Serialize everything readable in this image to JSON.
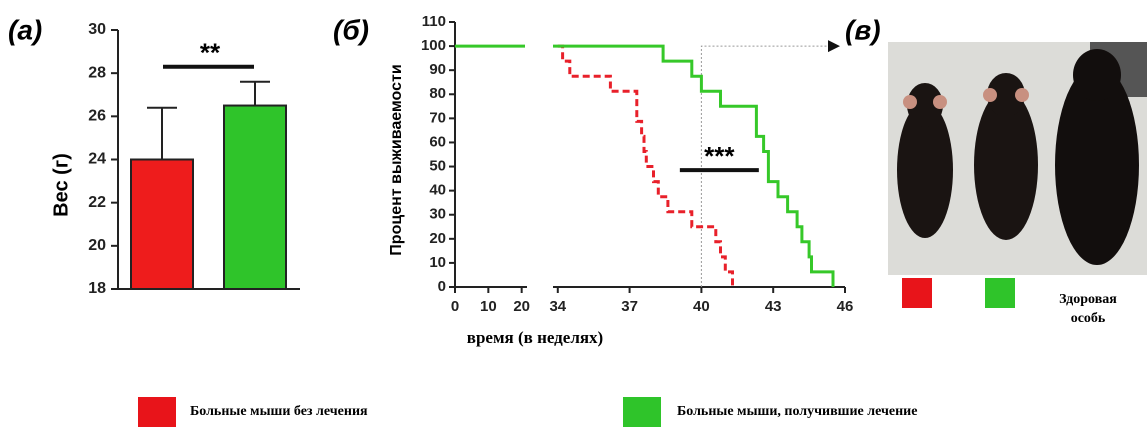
{
  "chart_data": [
    {
      "type": "bar",
      "panel_label": "(а)",
      "ylabel": "Вес (г)",
      "categories": [
        null,
        null
      ],
      "values": [
        24.0,
        26.5
      ],
      "errors": [
        2.4,
        1.1
      ],
      "colors": [
        "#ee1c1c",
        "#2fc42a"
      ],
      "ylim": [
        18,
        30
      ],
      "yticks": [
        18,
        20,
        22,
        24,
        26,
        28,
        30
      ],
      "significance": {
        "label": "**",
        "y": 28.3
      }
    },
    {
      "type": "line",
      "panel_label": "(б)",
      "xlabel": "время (в неделях)",
      "ylabel": "Процент выживаемости",
      "xlim_segments": [
        [
          0,
          21
        ],
        [
          33.8,
          46
        ]
      ],
      "xticks": [
        0,
        10,
        20,
        34,
        37,
        40,
        43,
        46
      ],
      "ylim": [
        0,
        110
      ],
      "yticks": [
        0,
        10,
        20,
        30,
        40,
        50,
        60,
        70,
        80,
        90,
        100,
        110
      ],
      "series": [
        {
          "name": "Больные мыши без лечения",
          "color": "#e8202a",
          "dash": true,
          "x": [
            34,
            34.2,
            34.2,
            34.5,
            34.5,
            36.2,
            36.2,
            37.3,
            37.3,
            37.5,
            37.5,
            37.6,
            37.6,
            37.7,
            37.7,
            38,
            38,
            38.2,
            38.2,
            38.6,
            38.6,
            39.6,
            39.6,
            40.6,
            40.6,
            40.8,
            40.8,
            41,
            41,
            41.3,
            41.3
          ],
          "values": [
            100,
            100,
            93.75,
            93.75,
            87.5,
            87.5,
            81.25,
            81.25,
            68.75,
            68.75,
            62.5,
            62.5,
            56.25,
            56.25,
            50,
            50,
            43.75,
            43.75,
            37.5,
            37.5,
            31.25,
            31.25,
            25,
            25,
            18.75,
            18.75,
            12.5,
            12.5,
            6.25,
            6.25,
            0
          ]
        },
        {
          "name": "Больные мыши, получившие лечение",
          "color": "#36c829",
          "dash": false,
          "x": [
            0,
            21,
            null,
            33.8,
            38.4,
            38.4,
            39.6,
            39.6,
            40,
            40,
            40.8,
            40.8,
            42.3,
            42.3,
            42.6,
            42.6,
            42.8,
            42.8,
            43.2,
            43.2,
            43.6,
            43.6,
            44,
            44,
            44.2,
            44.2,
            44.5,
            44.5,
            44.6,
            44.6,
            45.5,
            45.5
          ],
          "values": [
            100,
            100,
            null,
            100,
            100,
            93.75,
            93.75,
            87.5,
            87.5,
            81.25,
            81.25,
            75,
            75,
            62.5,
            62.5,
            56.25,
            56.25,
            43.75,
            43.75,
            37.5,
            37.5,
            31.25,
            31.25,
            25,
            25,
            18.75,
            18.75,
            12.5,
            12.5,
            6.25,
            6.25,
            0
          ]
        }
      ],
      "significance": {
        "label": "***",
        "x": [
          39.1,
          42.4
        ],
        "y": 48.5
      },
      "reference_line": {
        "x": 40,
        "y": 100
      }
    }
  ],
  "photo": {
    "panel_label": "(в)",
    "caption_lines": [
      "Здоровая",
      "особь"
    ]
  }
}
